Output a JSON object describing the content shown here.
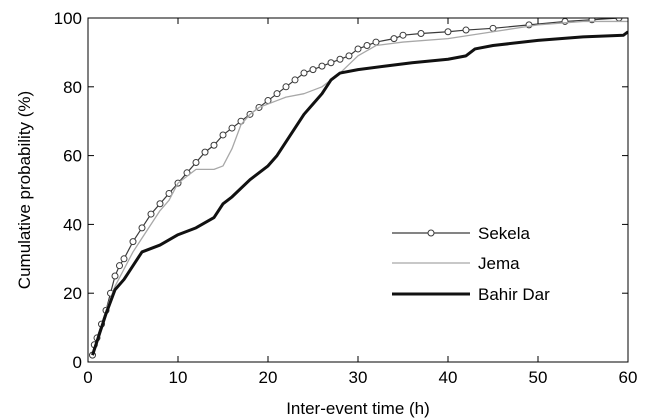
{
  "chart_data": {
    "type": "line",
    "title": "",
    "xlabel": "Inter-event time (h)",
    "ylabel": "Cumulative probability (%)",
    "xlim": [
      0,
      60
    ],
    "ylim": [
      0,
      100
    ],
    "xticks": [
      0,
      10,
      20,
      30,
      40,
      50,
      60
    ],
    "yticks": [
      0,
      20,
      40,
      60,
      80,
      100
    ],
    "grid": false,
    "legend_position": "lower-right",
    "series": [
      {
        "name": "Sekela",
        "color": "#3a3a3a",
        "marker": "open-circle",
        "points": [
          [
            0.5,
            2
          ],
          [
            0.7,
            5
          ],
          [
            1,
            7
          ],
          [
            1.5,
            11
          ],
          [
            2,
            15
          ],
          [
            2.5,
            20
          ],
          [
            3,
            25
          ],
          [
            3.5,
            28
          ],
          [
            4,
            30
          ],
          [
            5,
            35
          ],
          [
            6,
            39
          ],
          [
            7,
            43
          ],
          [
            8,
            46
          ],
          [
            9,
            49
          ],
          [
            10,
            52
          ],
          [
            11,
            55
          ],
          [
            12,
            58
          ],
          [
            13,
            61
          ],
          [
            14,
            63
          ],
          [
            15,
            66
          ],
          [
            16,
            68
          ],
          [
            17,
            70
          ],
          [
            18,
            72
          ],
          [
            19,
            74
          ],
          [
            20,
            76
          ],
          [
            21,
            78
          ],
          [
            22,
            80
          ],
          [
            23,
            82
          ],
          [
            24,
            84
          ],
          [
            25,
            85
          ],
          [
            26,
            86
          ],
          [
            27,
            87
          ],
          [
            28,
            88
          ],
          [
            29,
            89
          ],
          [
            30,
            91
          ],
          [
            31,
            92
          ],
          [
            32,
            93
          ],
          [
            34,
            94
          ],
          [
            35,
            95
          ],
          [
            37,
            95.5
          ],
          [
            40,
            96
          ],
          [
            42,
            96.5
          ],
          [
            45,
            97
          ],
          [
            49,
            98
          ],
          [
            53,
            99
          ],
          [
            56,
            99.5
          ],
          [
            59,
            100
          ]
        ]
      },
      {
        "name": "Jema",
        "color": "#a8a8a8",
        "marker": "none",
        "points": [
          [
            0.5,
            2
          ],
          [
            1,
            6
          ],
          [
            1.5,
            10
          ],
          [
            2,
            15
          ],
          [
            3,
            22
          ],
          [
            4,
            27
          ],
          [
            5,
            32
          ],
          [
            6,
            36
          ],
          [
            7,
            40
          ],
          [
            8,
            44
          ],
          [
            9,
            47
          ],
          [
            10,
            52
          ],
          [
            11,
            54
          ],
          [
            12,
            56
          ],
          [
            13,
            56
          ],
          [
            14,
            56
          ],
          [
            15,
            57
          ],
          [
            16,
            62
          ],
          [
            17,
            69
          ],
          [
            18,
            72
          ],
          [
            19,
            74
          ],
          [
            20,
            75
          ],
          [
            21,
            76
          ],
          [
            22,
            77
          ],
          [
            24,
            78
          ],
          [
            26,
            80
          ],
          [
            28,
            84
          ],
          [
            30,
            89
          ],
          [
            32,
            92
          ],
          [
            35,
            93
          ],
          [
            40,
            94
          ],
          [
            45,
            96
          ],
          [
            50,
            98
          ],
          [
            55,
            99
          ],
          [
            60,
            99
          ]
        ]
      },
      {
        "name": "Bahir Dar",
        "color": "#111111",
        "marker": "none",
        "points": [
          [
            0.5,
            2
          ],
          [
            1,
            6
          ],
          [
            1.5,
            10
          ],
          [
            2,
            14
          ],
          [
            3,
            21
          ],
          [
            4,
            24
          ],
          [
            5,
            28
          ],
          [
            6,
            32
          ],
          [
            8,
            34
          ],
          [
            10,
            37
          ],
          [
            12,
            39
          ],
          [
            14,
            42
          ],
          [
            15,
            46
          ],
          [
            16,
            48
          ],
          [
            18,
            53
          ],
          [
            20,
            57
          ],
          [
            21,
            60
          ],
          [
            22,
            64
          ],
          [
            23,
            68
          ],
          [
            24,
            72
          ],
          [
            25,
            75
          ],
          [
            26,
            78
          ],
          [
            27,
            82
          ],
          [
            28,
            84
          ],
          [
            30,
            85
          ],
          [
            33,
            86
          ],
          [
            36,
            87
          ],
          [
            40,
            88
          ],
          [
            42,
            89
          ],
          [
            43,
            91
          ],
          [
            45,
            92
          ],
          [
            50,
            93.5
          ],
          [
            55,
            94.5
          ],
          [
            59.5,
            95
          ],
          [
            60,
            96
          ]
        ]
      }
    ]
  }
}
